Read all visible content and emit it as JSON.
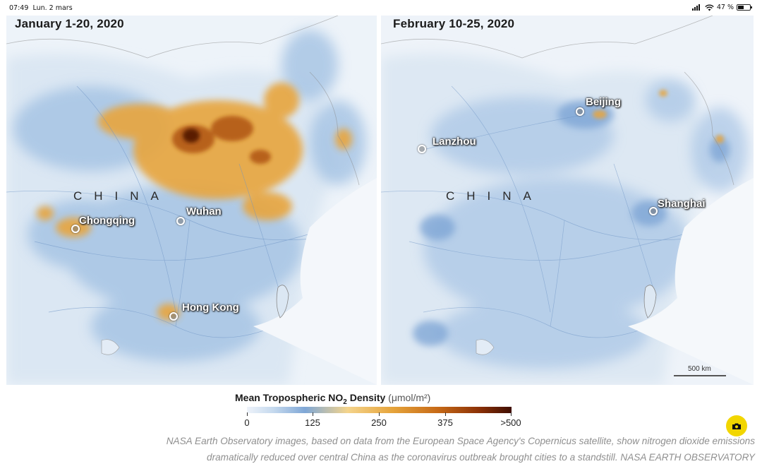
{
  "status_bar": {
    "time": "07:49",
    "date": "Lun. 2 mars",
    "battery_text": "47 %",
    "battery_level": 0.47,
    "icons": [
      "signal-icon",
      "wifi-icon",
      "battery-icon"
    ]
  },
  "maps": [
    {
      "title": "January 1-20, 2020",
      "country_label": "CHINA",
      "cities": [
        "Chongqing",
        "Wuhan",
        "Hong Kong"
      ]
    },
    {
      "title": "February 10-25, 2020",
      "country_label": "CHINA",
      "cities": [
        "Beijing",
        "Lanzhou",
        "Shanghai"
      ],
      "scale_label": "500 km"
    }
  ],
  "legend": {
    "title_bold": "Mean Tropospheric NO",
    "title_sub": "2",
    "title_bold_end": " Density",
    "unit": " (μmol/m²)",
    "ticks": [
      "0",
      "125",
      "250",
      "375",
      ">500"
    ]
  },
  "caption_line1": "NASA Earth Observatory images, based on data from the European Space Agency's Copernicus satellite, show nitrogen dioxide emissions",
  "caption_line2": "dramatically reduced over central China as the coronavirus outbreak brought cities to a standstill. NASA EARTH OBSERVATORY",
  "colors": {
    "low": "#eef3fa",
    "mid_blue": "#7fa7d6",
    "mid_orange": "#e6a43b",
    "high": "#3f0e02",
    "camera_button": "#f2d600",
    "caption": "#8f8f8f"
  }
}
